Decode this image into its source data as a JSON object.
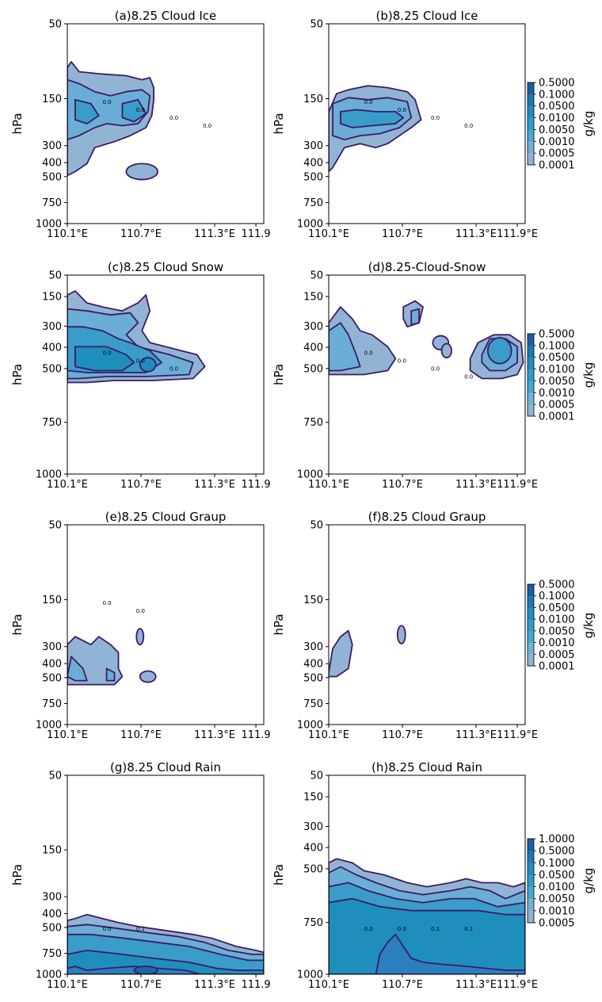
{
  "colors": {
    "c1": "#92b4d4",
    "c2": "#6aaed6",
    "c3": "#3a9cc8",
    "c4": "#1e8fbd",
    "c5": "#2b7fbf",
    "c6": "#1868ab",
    "contour": "#3d1a66",
    "frame": "#000000",
    "label": "#666699"
  },
  "ylabel": "hPa",
  "colorbars": [
    {
      "label": "g/kg",
      "ticks": [
        "0.5000",
        "0.1000",
        "0.0500",
        "0.0100",
        "0.0050",
        "0.0010",
        "0.0005",
        "0.0001"
      ]
    },
    {
      "label": "g/kg",
      "ticks": [
        "0.5000",
        "0.1000",
        "0.0500",
        "0.0100",
        "0.0050",
        "0.0010",
        "0.0005",
        "0.0001"
      ]
    },
    {
      "label": "g/kg",
      "ticks": [
        "0.5000",
        "0.1000",
        "0.0500",
        "0.0100",
        "0.0050",
        "0.0010",
        "0.0005",
        "0.0001"
      ]
    },
    {
      "label": "g/kg",
      "ticks": [
        "1.0000",
        "0.5000",
        "0.1000",
        "0.0500",
        "0.0100",
        "0.0050",
        "0.0010",
        "0.0005"
      ]
    }
  ],
  "chart_data": [
    {
      "type": "contour",
      "title": "(a)8.25 Cloud Ice",
      "ylabel": "hPa",
      "yticks": [
        "50",
        "150",
        "300",
        "400",
        "500",
        "750",
        "1000"
      ],
      "xticks": [
        "110.1°E",
        "110.7°E",
        "111.3°E",
        "111.9"
      ],
      "contour_labels": [
        "0.0",
        "0.0",
        "0.0",
        "0.0"
      ]
    },
    {
      "type": "contour",
      "title": "(b)8.25 Cloud Ice",
      "ylabel": "hPa",
      "yticks": [
        "50",
        "150",
        "300",
        "400",
        "500",
        "750",
        "1000"
      ],
      "xticks": [
        "110.1°E",
        "110.7°E",
        "111.3°E",
        "111.9°E"
      ],
      "contour_labels": [
        "0.0",
        "0.0",
        "0.0",
        "0.0"
      ]
    },
    {
      "type": "contour",
      "title": "(c)8.25 Cloud Snow",
      "ylabel": "hPa",
      "yticks": [
        "50",
        "150",
        "300",
        "400",
        "500",
        "750",
        "1000"
      ],
      "xticks": [
        "110.1°E",
        "110.7°E",
        "111.3°E",
        "111.9"
      ],
      "contour_labels": [
        "0.0",
        "0.0",
        "0.0"
      ]
    },
    {
      "type": "contour",
      "title": "(d)8.25-Cloud-Snow",
      "ylabel": "hPa",
      "yticks": [
        "50",
        "150",
        "300",
        "400",
        "500",
        "750",
        "1000"
      ],
      "xticks": [
        "110.1°E",
        "110.7°E",
        "111.3°E",
        "111.9°E"
      ],
      "contour_labels": [
        "0.0",
        "0.0",
        "0.0",
        "0.0"
      ]
    },
    {
      "type": "contour",
      "title": "(e)8.25 Cloud Graup",
      "ylabel": "hPa",
      "yticks": [
        "50",
        "150",
        "300",
        "400",
        "500",
        "750",
        "1000"
      ],
      "xticks": [
        "110.1°E",
        "110.7°E",
        "111.3°E",
        "111.9"
      ],
      "contour_labels": [
        "0.0",
        "0.0"
      ]
    },
    {
      "type": "contour",
      "title": "(f)8.25 Cloud Graup",
      "ylabel": "hPa",
      "yticks": [
        "50",
        "150",
        "300",
        "400",
        "500",
        "750",
        "1000"
      ],
      "xticks": [
        "110.1°E",
        "110.7°E",
        "111.3°E",
        "111.9°E"
      ],
      "contour_labels": []
    },
    {
      "type": "contour",
      "title": "(g)8.25 Cloud Rain",
      "ylabel": "hPa",
      "yticks": [
        "50",
        "150",
        "300",
        "400",
        "500",
        "750",
        "1000"
      ],
      "xticks": [
        "110.1°E",
        "110.7°E",
        "111.3°E",
        "111.9"
      ],
      "contour_labels": [
        "0.0",
        "0.1"
      ]
    },
    {
      "type": "contour",
      "title": "(h)8.25 Cloud Rain",
      "ylabel": "hPa",
      "yticks": [
        "50",
        "150",
        "300",
        "400",
        "500",
        "750",
        "1000"
      ],
      "xticks": [
        "110.1°E",
        "110.7°E",
        "111.3°E",
        "111.9°E"
      ],
      "contour_labels": [
        "0.0",
        "0.0",
        "0.1",
        "0.1"
      ]
    }
  ]
}
